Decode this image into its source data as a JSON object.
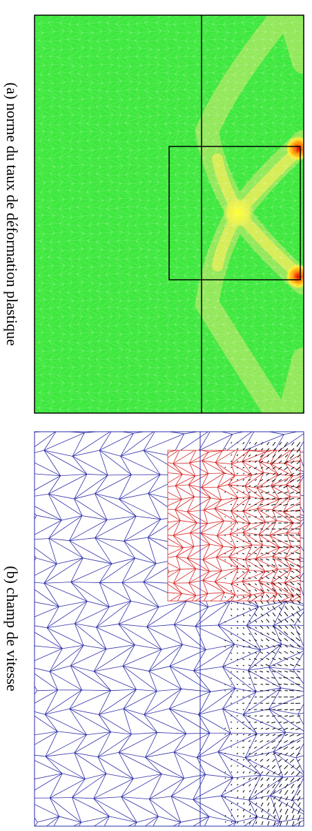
{
  "figures": [
    {
      "caption": "(a) norme du taux de déformation plastique"
    },
    {
      "caption": "(b) champ de vitesse"
    }
  ]
}
